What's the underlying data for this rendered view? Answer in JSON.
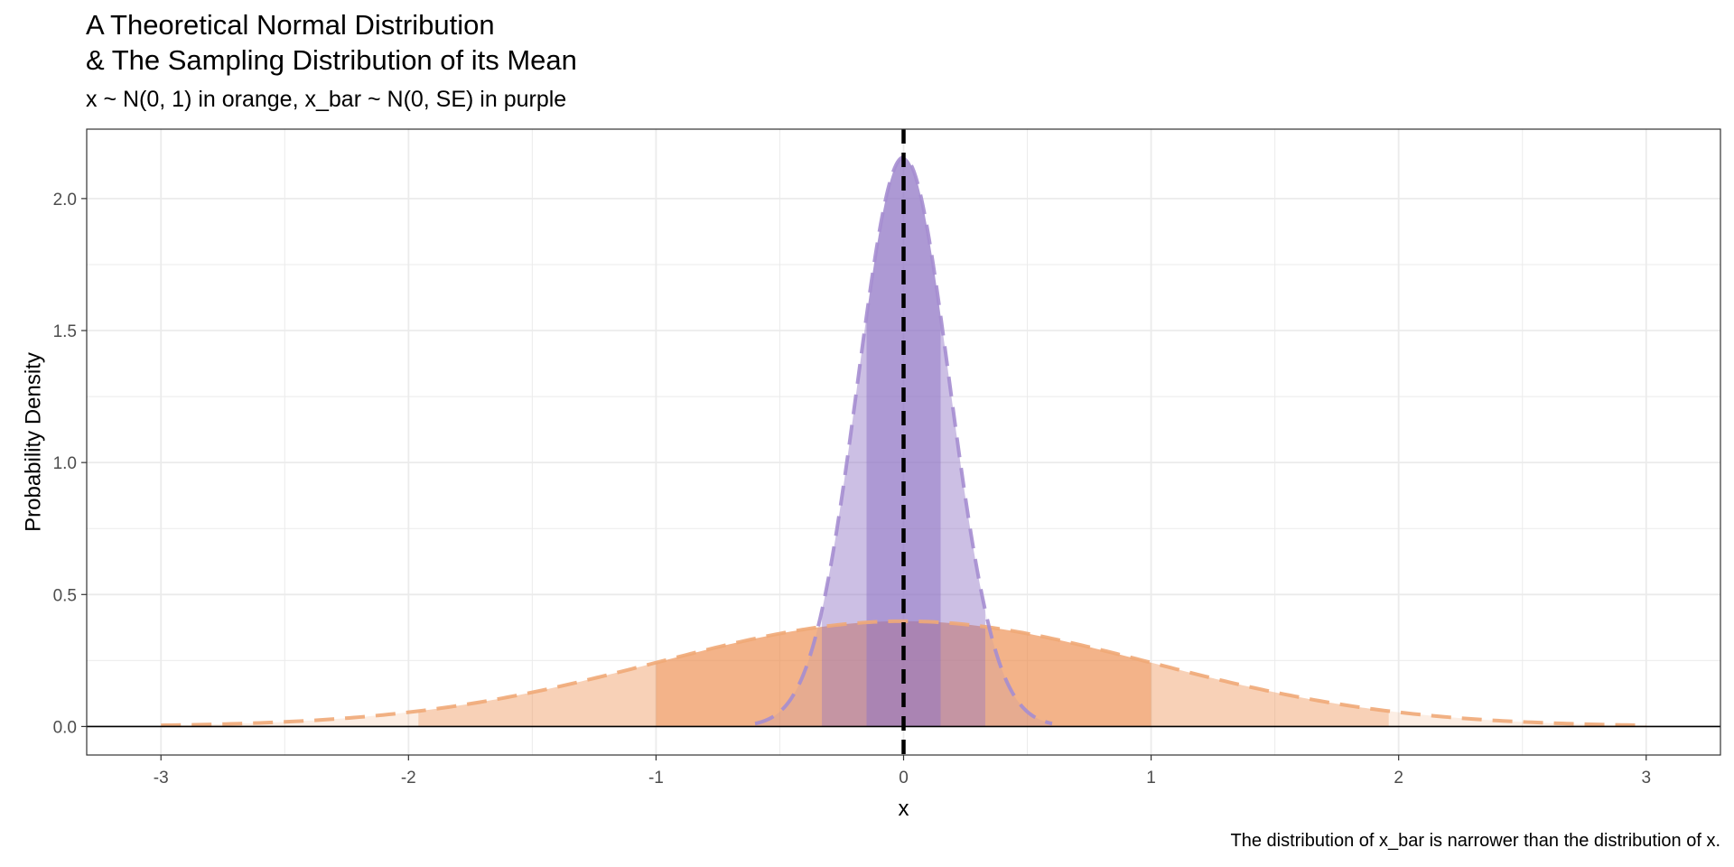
{
  "title_line1": "A Theoretical Normal Distribution",
  "title_line2": "& The Sampling Distribution of its Mean",
  "subtitle": "x ~ N(0, 1) in orange, x_bar ~ N(0, SE) in purple",
  "caption": "The distribution of x_bar is narrower than the distribution of x.",
  "colors": {
    "orange": "#ED8B4A",
    "orange_line": "#F0A877",
    "purple": "#8E72C4",
    "purple_line": "#A58DD0",
    "mean_line": "#000000",
    "grid": "#EBEBEB"
  },
  "chart_data": {
    "type": "area",
    "xlabel": "x",
    "ylabel": "Probability Density",
    "xlim": [
      -3.3,
      3.3
    ],
    "ylim": [
      -0.108,
      2.263
    ],
    "x_ticks": [
      -3,
      -2,
      -1,
      0,
      1,
      2,
      3
    ],
    "x_tick_labels": [
      "-3",
      "-2",
      "-1",
      "0",
      "1",
      "2",
      "3"
    ],
    "y_ticks": [
      0.0,
      0.5,
      1.0,
      1.5,
      2.0
    ],
    "y_tick_labels": [
      "0.0",
      "0.5",
      "1.0",
      "1.5",
      "2.0"
    ],
    "grid": true,
    "series": [
      {
        "distribution": "normal",
        "mean": 0,
        "sd": 1,
        "x_range": [
          -3,
          3
        ],
        "peak_density": 0.399,
        "color": "orange",
        "shaded_bands": [
          {
            "from": -3,
            "to": -1.96,
            "opacity": 0.15
          },
          {
            "from": -1.96,
            "to": -1,
            "opacity": 0.4
          },
          {
            "from": -1,
            "to": 1,
            "opacity": 0.65
          },
          {
            "from": 1,
            "to": 1.96,
            "opacity": 0.4
          },
          {
            "from": 1.96,
            "to": 3,
            "opacity": 0.15
          }
        ]
      },
      {
        "distribution": "normal",
        "mean": 0,
        "sd": 0.185,
        "x_range": [
          -0.6,
          0.6
        ],
        "peak_density": 2.157,
        "color": "purple",
        "shaded_bands": [
          {
            "from": -0.6,
            "to": -0.33,
            "opacity": 0.12
          },
          {
            "from": -0.33,
            "to": -0.15,
            "opacity": 0.45
          },
          {
            "from": -0.15,
            "to": 0.15,
            "opacity": 0.72
          },
          {
            "from": 0.15,
            "to": 0.33,
            "opacity": 0.45
          },
          {
            "from": 0.33,
            "to": 0.6,
            "opacity": 0.12
          }
        ]
      }
    ],
    "vline": {
      "x": 0,
      "style": "dashed"
    },
    "hline": {
      "y": 0
    }
  }
}
